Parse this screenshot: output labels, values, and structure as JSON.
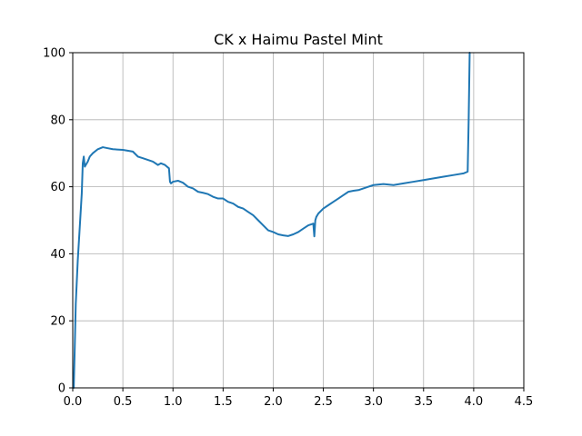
{
  "chart_data": {
    "type": "line",
    "title": "CK x Haimu Pastel Mint",
    "xlabel": "",
    "ylabel": "",
    "xlim": [
      0,
      4.5
    ],
    "ylim": [
      0,
      100
    ],
    "xticks": [
      "0.0",
      "0.5",
      "1.0",
      "1.5",
      "2.0",
      "2.5",
      "3.0",
      "3.5",
      "4.0",
      "4.5"
    ],
    "yticks": [
      "0",
      "20",
      "40",
      "60",
      "80",
      "100"
    ],
    "grid": true,
    "series_color": "#1f77b4",
    "series": [
      {
        "x": [
          0.01,
          0.02,
          0.03,
          0.05,
          0.07,
          0.09,
          0.1,
          0.11,
          0.12,
          0.13,
          0.15,
          0.17,
          0.2,
          0.25,
          0.3,
          0.35,
          0.4,
          0.5,
          0.6,
          0.65,
          0.7,
          0.75,
          0.8,
          0.85,
          0.88,
          0.92,
          0.96,
          0.97,
          0.98,
          1.0,
          1.05,
          1.1,
          1.15,
          1.2,
          1.25,
          1.3,
          1.35,
          1.4,
          1.45,
          1.5,
          1.55,
          1.6,
          1.65,
          1.7,
          1.75,
          1.8,
          1.85,
          1.9,
          1.95,
          2.0,
          2.05,
          2.1,
          2.15,
          2.2,
          2.25,
          2.3,
          2.35,
          2.4,
          2.41,
          2.42,
          2.43,
          2.45,
          2.5,
          2.55,
          2.6,
          2.65,
          2.7,
          2.75,
          2.8,
          2.85,
          2.9,
          2.95,
          3.0,
          3.1,
          3.2,
          3.3,
          3.4,
          3.5,
          3.6,
          3.7,
          3.8,
          3.9,
          3.94,
          3.95,
          3.96
        ],
        "y": [
          0,
          12,
          25,
          38,
          48,
          58,
          67,
          69,
          66,
          66.5,
          67.5,
          69,
          70,
          71.2,
          71.8,
          71.5,
          71.2,
          71,
          70.5,
          69,
          68.5,
          68,
          67.5,
          66.5,
          67,
          66.5,
          65.5,
          61.5,
          61,
          61.5,
          61.8,
          61.2,
          60,
          59.5,
          58.5,
          58.2,
          57.8,
          57,
          56.5,
          56.5,
          55.5,
          55,
          54,
          53.5,
          52.5,
          51.5,
          50,
          48.5,
          47,
          46.5,
          45.8,
          45.5,
          45.3,
          45.8,
          46.5,
          47.5,
          48.5,
          49,
          45.2,
          50,
          51,
          52,
          53.5,
          54.5,
          55.5,
          56.5,
          57.5,
          58.5,
          58.8,
          59,
          59.5,
          60,
          60.5,
          60.8,
          60.5,
          61,
          61.5,
          62,
          62.5,
          63,
          63.5,
          64,
          64.5,
          80,
          100
        ]
      }
    ]
  }
}
